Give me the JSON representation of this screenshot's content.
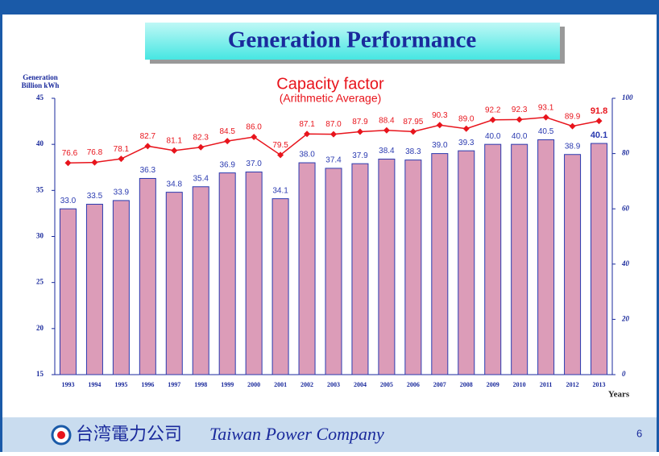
{
  "header": {
    "title": "Generation Performance"
  },
  "chart_data": {
    "type": "bar",
    "y_label": [
      "Generation",
      "Billion kWh"
    ],
    "x_label": "Years",
    "annotation": "(Arithmetic Average)",
    "categories": [
      "1993",
      "1994",
      "1995",
      "1996",
      "1997",
      "1998",
      "1999",
      "2000",
      "2001",
      "2002",
      "2003",
      "2004",
      "2005",
      "2006",
      "2007",
      "2008",
      "2009",
      "2010",
      "2011",
      "2012",
      "2013"
    ],
    "series": [
      {
        "name": "Generation",
        "type": "bar",
        "color": "#dc9cb8",
        "values": [
          33.0,
          33.5,
          33.9,
          36.3,
          34.8,
          35.4,
          36.9,
          37.0,
          34.1,
          38.0,
          37.4,
          37.9,
          38.4,
          38.3,
          39.0,
          39.3,
          40.0,
          40.0,
          40.5,
          38.9,
          40.1
        ],
        "value_labels": [
          "33.0",
          "33.5",
          "33.9",
          "36.3",
          "34.8",
          "35.4",
          "36.9",
          "37.0",
          "34.1",
          "38.0",
          "37.4",
          "37.9",
          "38.4",
          "38.3",
          "39.0",
          "39.3",
          "40.0",
          "40.0",
          "40.5",
          "38.9",
          "40.1"
        ]
      },
      {
        "name": "Capacity factor",
        "type": "line",
        "axis": "y2",
        "color": "#e8141c",
        "values": [
          76.6,
          76.8,
          78.1,
          82.7,
          81.1,
          82.3,
          84.5,
          86.0,
          79.5,
          87.1,
          87.0,
          87.9,
          88.4,
          87.95,
          90.3,
          89.0,
          92.2,
          92.3,
          93.1,
          89.9,
          91.8
        ],
        "value_labels": [
          "76.6",
          "76.8",
          "78.1",
          "82.7",
          "81.1",
          "82.3",
          "84.5",
          "86.0",
          "79.5",
          "87.1",
          "87.0",
          "87.9",
          "88.4",
          "87.95",
          "90.3",
          "89.0",
          "92.2",
          "92.3",
          "93.1",
          "89.9",
          "91.8"
        ]
      }
    ],
    "ylim": [
      15,
      45
    ],
    "yticks": [
      15,
      20,
      25,
      30,
      35,
      40,
      45
    ],
    "y2lim": [
      0,
      100
    ],
    "y2ticks": [
      0,
      20,
      40,
      60,
      80,
      100
    ]
  },
  "footer": {
    "company_cn": "台湾電力公司",
    "company": "Taiwan Power Company",
    "page": "6"
  }
}
